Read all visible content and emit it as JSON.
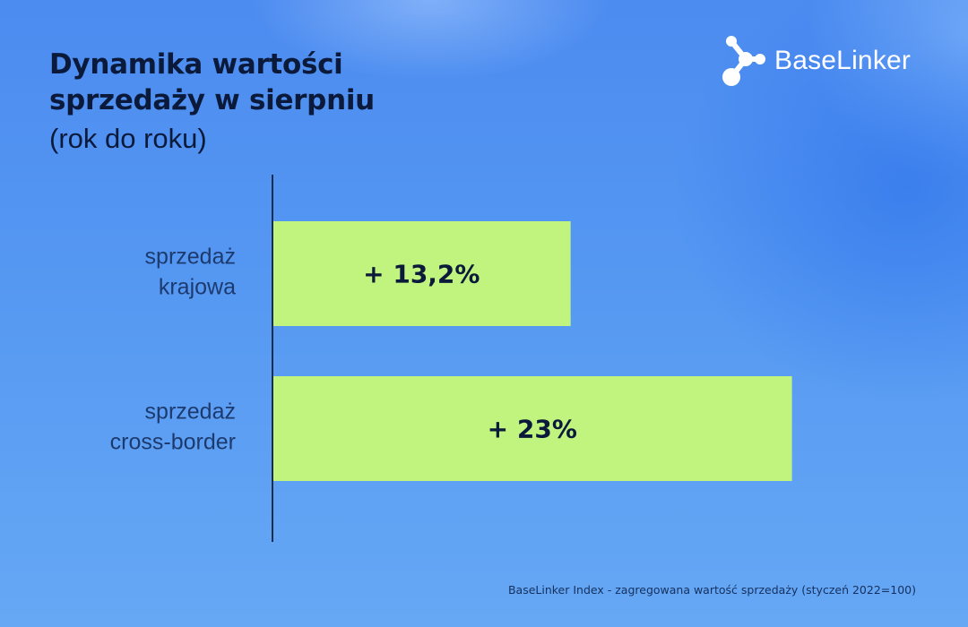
{
  "title": "Dynamika wartości\nsprzedaży w sierpniu",
  "subtitle": "(rok do roku)",
  "logo": {
    "text": "BaseLinker",
    "icon": "molecule-logo-icon"
  },
  "footnote": "BaseLinker Index - zagregowana wartość sprzedaży (styczeń 2022=100)",
  "colors": {
    "bar": "#c0f47f",
    "text_dark": "#0b1a3a",
    "label": "#1d3a6e",
    "axis": "#1a2a4a"
  },
  "chart_data": {
    "type": "bar",
    "orientation": "horizontal",
    "categories": [
      [
        "sprzedaż",
        "krajowa"
      ],
      [
        "sprzedaż",
        "cross-border"
      ]
    ],
    "values": [
      13.2,
      23
    ],
    "data_labels": [
      "+ 13,2%",
      "+ 23%"
    ],
    "unit": "%",
    "xlim": [
      0,
      32
    ],
    "grid": false,
    "legend": "none"
  }
}
